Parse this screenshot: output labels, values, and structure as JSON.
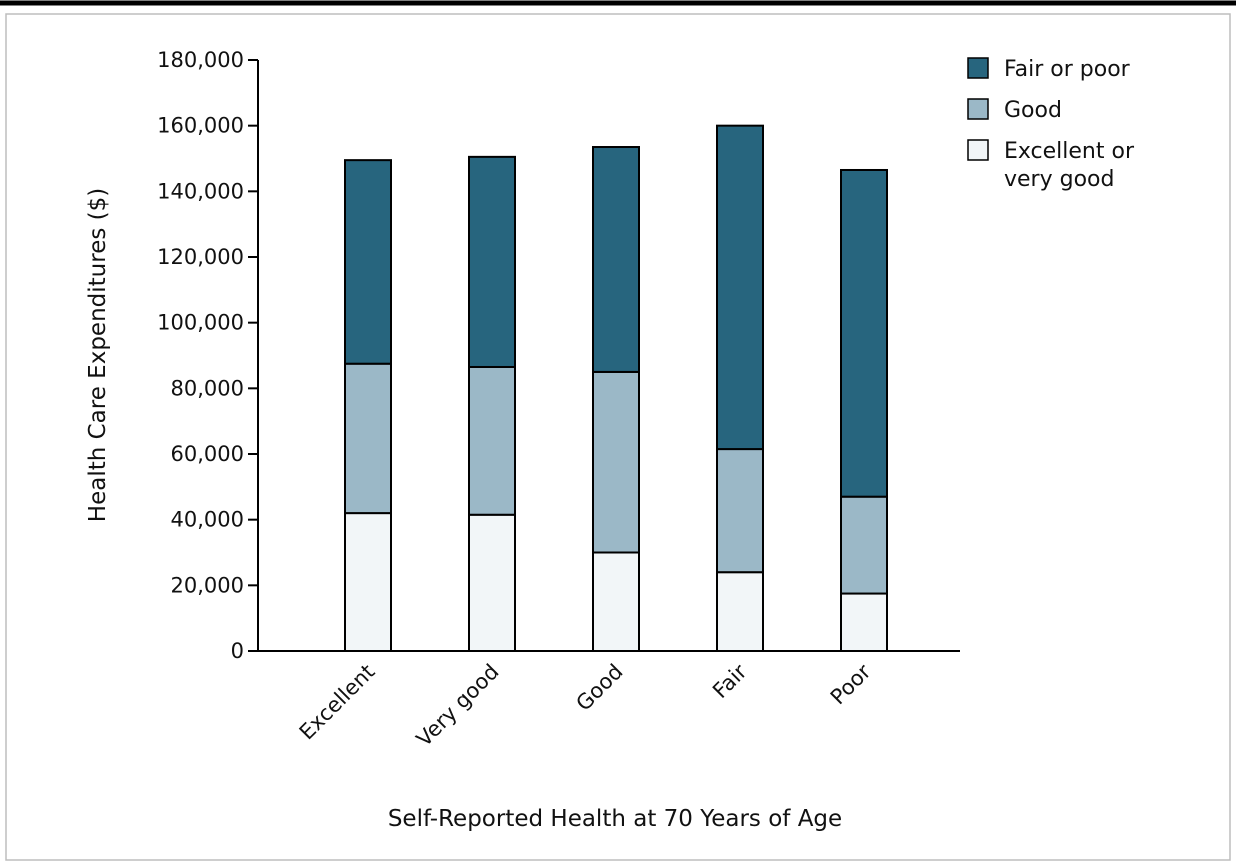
{
  "chart_data": {
    "type": "bar",
    "stacked": true,
    "title": "",
    "xlabel": "Self-Reported Health at 70 Years of Age",
    "ylabel": "Health Care Expenditures ($)",
    "ylim": [
      0,
      180000
    ],
    "yticks": [
      0,
      20000,
      40000,
      60000,
      80000,
      100000,
      120000,
      140000,
      160000,
      180000
    ],
    "ytick_labels": [
      "0",
      "20,000",
      "40,000",
      "60,000",
      "80,000",
      "100,000",
      "120,000",
      "140,000",
      "160,000",
      "180,000"
    ],
    "categories": [
      "Excellent",
      "Very good",
      "Good",
      "Fair",
      "Poor"
    ],
    "series": [
      {
        "name": "Excellent or very good",
        "legend_lines": [
          "Excellent or",
          "very good"
        ],
        "color": "#f2f6f8",
        "values": [
          42000,
          41500,
          30000,
          24000,
          17500
        ]
      },
      {
        "name": "Good",
        "legend_lines": [
          "Good"
        ],
        "color": "#9bb8c7",
        "values": [
          45500,
          45000,
          55000,
          37500,
          29500
        ]
      },
      {
        "name": "Fair or poor",
        "legend_lines": [
          "Fair or poor"
        ],
        "color": "#27657e",
        "values": [
          62000,
          64000,
          68500,
          98500,
          99500
        ]
      }
    ],
    "legend_order": [
      2,
      1,
      0
    ],
    "legend_position": "top-right",
    "grid": false
  }
}
